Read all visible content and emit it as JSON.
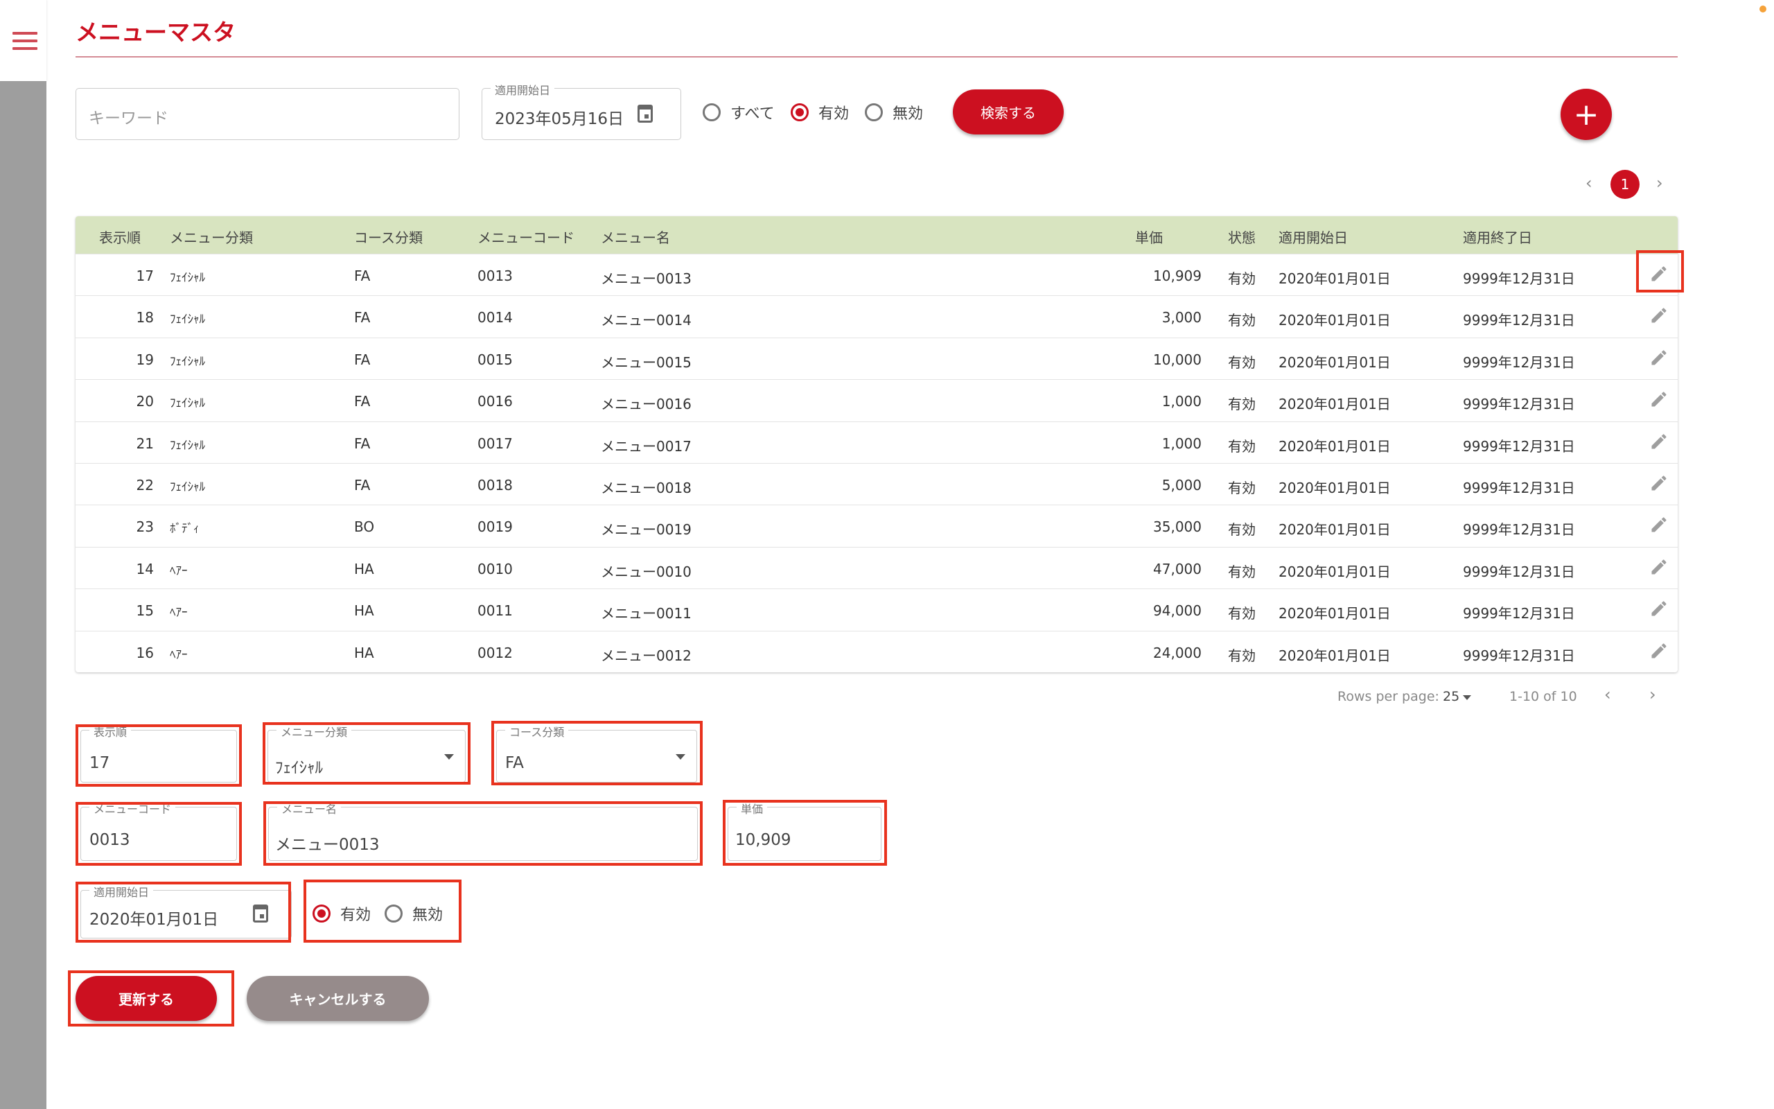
{
  "header": {
    "title": "メニューマスタ"
  },
  "search": {
    "keyword_placeholder": "キーワード",
    "date_label": "適用開始日",
    "date_value": "2023年05月16日",
    "radio_all": "すべて",
    "radio_valid": "有効",
    "radio_invalid": "無効",
    "selected": "有効",
    "search_button": "検索する",
    "add_button": "+"
  },
  "pagination": {
    "current_page": "1"
  },
  "table": {
    "headers": [
      "表示順",
      "メニュー分類",
      "コース分類",
      "メニューコード",
      "メニュー名",
      "単価",
      "状態",
      "適用開始日",
      "適用終了日"
    ],
    "rows": [
      [
        "17",
        "ﾌｪｲｼｬﾙ",
        "FA",
        "0013",
        "メニュー0013",
        "10,909",
        "有効",
        "2020年01月01日",
        "9999年12月31日"
      ],
      [
        "18",
        "ﾌｪｲｼｬﾙ",
        "FA",
        "0014",
        "メニュー0014",
        "3,000",
        "有効",
        "2020年01月01日",
        "9999年12月31日"
      ],
      [
        "19",
        "ﾌｪｲｼｬﾙ",
        "FA",
        "0015",
        "メニュー0015",
        "10,000",
        "有効",
        "2020年01月01日",
        "9999年12月31日"
      ],
      [
        "20",
        "ﾌｪｲｼｬﾙ",
        "FA",
        "0016",
        "メニュー0016",
        "1,000",
        "有効",
        "2020年01月01日",
        "9999年12月31日"
      ],
      [
        "21",
        "ﾌｪｲｼｬﾙ",
        "FA",
        "0017",
        "メニュー0017",
        "1,000",
        "有効",
        "2020年01月01日",
        "9999年12月31日"
      ],
      [
        "22",
        "ﾌｪｲｼｬﾙ",
        "FA",
        "0018",
        "メニュー0018",
        "5,000",
        "有効",
        "2020年01月01日",
        "9999年12月31日"
      ],
      [
        "23",
        "ﾎﾞﾃﾞｨ",
        "BO",
        "0019",
        "メニュー0019",
        "35,000",
        "有効",
        "2020年01月01日",
        "9999年12月31日"
      ],
      [
        "14",
        "ﾍｱｰ",
        "HA",
        "0010",
        "メニュー0010",
        "47,000",
        "有効",
        "2020年01月01日",
        "9999年12月31日"
      ],
      [
        "15",
        "ﾍｱｰ",
        "HA",
        "0011",
        "メニュー0011",
        "94,000",
        "有効",
        "2020年01月01日",
        "9999年12月31日"
      ],
      [
        "16",
        "ﾍｱｰ",
        "HA",
        "0012",
        "メニュー0012",
        "24,000",
        "有効",
        "2020年01月01日",
        "9999年12月31日"
      ]
    ],
    "rows_per_page_label": "Rows per page:",
    "rows_per_page": "25",
    "range": "1-10 of 10"
  },
  "form": {
    "order_label": "表示順",
    "order_value": "17",
    "menu_category_label": "メニュー分類",
    "menu_category_value": "ﾌｪｲｼｬﾙ",
    "course_label": "コース分類",
    "course_value": "FA",
    "code_label": "メニューコード",
    "code_value": "0013",
    "name_label": "メニュー名",
    "name_value": "メニュー0013",
    "price_label": "単価",
    "price_value": "10,909",
    "start_label": "適用開始日",
    "start_value": "2020年01月01日",
    "radio_valid": "有効",
    "radio_invalid": "無効",
    "selected": "有効",
    "update_button": "更新する",
    "cancel_button": "キャンセルする"
  },
  "colors": {
    "accent": "#cc1020",
    "table_header": "#d8e4c0",
    "highlight": "#e8321e",
    "cancel": "#968b8b"
  }
}
